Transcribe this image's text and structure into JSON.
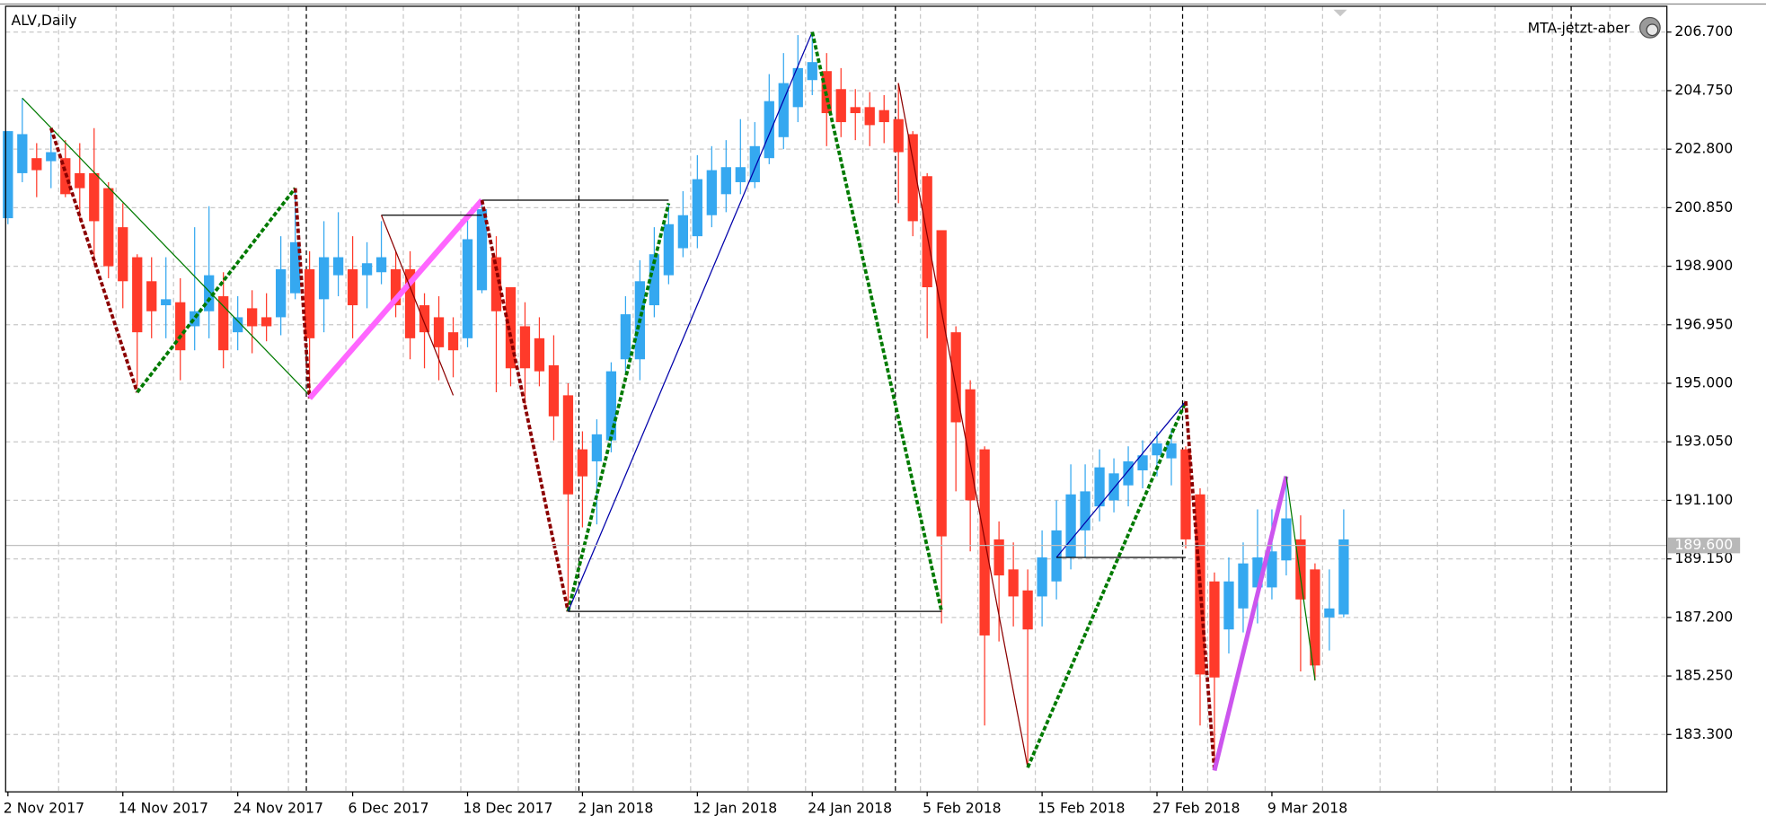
{
  "chart_data": {
    "type": "candlestick",
    "title": "ALV,Daily",
    "indicator_label": "MTA-jetzt-aber",
    "up_color": "#35a8f0",
    "down_color": "#ff3a2a",
    "grid": true,
    "categories": [
      "2 Nov 2017",
      null,
      null,
      null,
      null,
      null,
      null,
      null,
      "14 Nov 2017",
      null,
      null,
      null,
      null,
      null,
      null,
      null,
      "24 Nov 2017",
      null,
      null,
      null,
      null,
      null,
      null,
      null,
      "6 Dec 2017",
      null,
      null,
      null,
      null,
      null,
      null,
      null,
      "18 Dec 2017",
      null,
      null,
      null,
      null,
      null,
      null,
      null,
      "2 Jan 2018",
      null,
      null,
      null,
      null,
      null,
      null,
      null,
      "12 Jan 2018",
      null,
      null,
      null,
      null,
      null,
      null,
      null,
      "24 Jan 2018",
      null,
      null,
      null,
      null,
      null,
      null,
      null,
      "5 Feb 2018",
      null,
      null,
      null,
      null,
      null,
      null,
      null,
      "15 Feb 2018",
      null,
      null,
      null,
      null,
      null,
      null,
      null,
      "27 Feb 2018",
      null,
      null,
      null,
      null,
      null,
      null,
      null,
      "9 Mar 2018",
      null,
      null,
      null,
      null,
      null
    ],
    "open": [
      200.5,
      202.0,
      202.5,
      202.4,
      202.5,
      202.0,
      202.0,
      201.5,
      200.2,
      199.2,
      198.4,
      197.6,
      197.7,
      196.9,
      197.4,
      197.9,
      196.7,
      197.5,
      197.2,
      197.2,
      198.0,
      198.8,
      197.8,
      198.6,
      198.8,
      198.6,
      198.7,
      198.8,
      198.8,
      197.6,
      197.2,
      196.7,
      196.5,
      198.1,
      199.2,
      198.2,
      196.9,
      196.5,
      195.6,
      194.6,
      192.8,
      192.4,
      193.1,
      195.8,
      195.8,
      197.6,
      198.6,
      199.5,
      199.9,
      200.6,
      201.3,
      201.7,
      201.7,
      202.5,
      203.2,
      204.2,
      205.1,
      205.4,
      204.8,
      204.2,
      204.2,
      204.1,
      203.8,
      203.3,
      201.9,
      200.1,
      196.7,
      194.8,
      192.8,
      189.8,
      188.8,
      188.1,
      187.9,
      188.4,
      189.2,
      190.1,
      190.9,
      191.1,
      191.6,
      192.1,
      192.6,
      192.5,
      192.8,
      191.3,
      188.4,
      186.8,
      187.5,
      188.2,
      188.2,
      189.1,
      189.8,
      188.8,
      187.2,
      187.3
    ],
    "high": [
      203.4,
      204.5,
      203.0,
      203.5,
      203.1,
      203.0,
      203.5,
      201.7,
      201.0,
      199.3,
      199.2,
      199.2,
      198.5,
      200.2,
      200.9,
      198.7,
      197.9,
      198.1,
      198.0,
      199.9,
      201.5,
      199.4,
      200.4,
      200.7,
      199.9,
      199.7,
      200.4,
      199.4,
      199.4,
      198.0,
      197.9,
      197.2,
      200.6,
      201.1,
      199.9,
      198.2,
      197.7,
      197.2,
      196.6,
      195.0,
      193.4,
      193.8,
      195.7,
      197.9,
      199.1,
      200.2,
      201.0,
      201.4,
      202.6,
      202.9,
      203.1,
      203.8,
      203.7,
      205.3,
      206.0,
      206.6,
      206.7,
      206.0,
      205.5,
      204.8,
      204.7,
      204.6,
      205.0,
      203.4,
      202.0,
      200.1,
      196.9,
      195.1,
      192.9,
      190.4,
      189.7,
      188.8,
      190.1,
      191.1,
      192.3,
      192.3,
      192.8,
      192.5,
      192.9,
      193.1,
      193.4,
      193.5,
      192.9,
      191.5,
      188.7,
      189.2,
      189.7,
      190.8,
      190.8,
      191.9,
      190.6,
      189.0,
      188.8,
      190.8
    ],
    "low": [
      200.3,
      201.7,
      201.2,
      201.5,
      201.2,
      200.4,
      199.0,
      198.5,
      197.5,
      194.9,
      196.5,
      196.5,
      195.1,
      196.1,
      196.5,
      195.5,
      196.1,
      196.0,
      196.4,
      196.6,
      197.8,
      194.5,
      196.7,
      197.9,
      196.5,
      197.5,
      198.3,
      197.2,
      195.8,
      195.5,
      195.1,
      195.2,
      196.2,
      198.0,
      194.7,
      194.9,
      194.3,
      194.9,
      193.1,
      187.4,
      190.2,
      190.3,
      192.7,
      195.3,
      195.1,
      197.2,
      198.3,
      199.2,
      199.5,
      200.2,
      200.7,
      201.3,
      201.5,
      202.3,
      202.8,
      203.7,
      204.6,
      202.9,
      203.2,
      203.1,
      202.9,
      203.0,
      201.0,
      199.9,
      196.5,
      187.0,
      191.4,
      189.4,
      183.6,
      186.4,
      186.9,
      182.2,
      186.9,
      187.8,
      188.8,
      189.2,
      190.4,
      190.7,
      190.9,
      191.5,
      191.9,
      191.6,
      189.5,
      183.6,
      182.1,
      186.0,
      186.7,
      187.0,
      187.8,
      188.6,
      185.4,
      185.1,
      186.1,
      187.2
    ],
    "close": [
      203.4,
      203.3,
      202.1,
      202.7,
      201.3,
      201.5,
      200.4,
      198.9,
      198.4,
      196.7,
      197.4,
      197.8,
      196.1,
      197.4,
      198.6,
      196.1,
      197.2,
      196.9,
      196.9,
      198.8,
      199.7,
      196.5,
      199.2,
      199.2,
      197.6,
      199.0,
      199.2,
      197.6,
      196.5,
      196.7,
      196.2,
      196.1,
      199.8,
      200.8,
      197.4,
      195.5,
      195.5,
      195.4,
      193.9,
      191.3,
      191.9,
      193.3,
      195.4,
      197.3,
      198.4,
      199.3,
      200.3,
      200.6,
      201.8,
      202.1,
      202.2,
      202.2,
      202.9,
      204.4,
      205.0,
      205.5,
      205.7,
      204.0,
      203.7,
      204.0,
      203.6,
      203.7,
      202.7,
      200.4,
      198.2,
      189.9,
      193.7,
      191.1,
      186.6,
      188.6,
      187.9,
      186.8,
      189.2,
      190.1,
      191.3,
      191.4,
      192.2,
      192.0,
      192.4,
      192.6,
      193.0,
      193.0,
      189.8,
      185.3,
      185.2,
      188.4,
      189.0,
      189.2,
      189.4,
      190.5,
      187.8,
      185.6,
      187.5,
      189.8
    ],
    "xlim": [
      -0.16,
      115.5
    ],
    "ylim": [
      181.39,
      207.56
    ],
    "yticks": [
      {
        "value": 206.7,
        "label": "206.700"
      },
      {
        "value": 204.75,
        "label": "204.750"
      },
      {
        "value": 202.8,
        "label": "202.800"
      },
      {
        "value": 200.85,
        "label": "200.850"
      },
      {
        "value": 198.9,
        "label": "198.900"
      },
      {
        "value": 196.95,
        "label": "196.950"
      },
      {
        "value": 195.0,
        "label": "195.000"
      },
      {
        "value": 193.05,
        "label": "193.050"
      },
      {
        "value": 191.1,
        "label": "191.100"
      },
      {
        "value": 189.15,
        "label": "189.150"
      },
      {
        "value": 187.2,
        "label": "187.200"
      },
      {
        "value": 185.25,
        "label": "185.250"
      },
      {
        "value": 183.3,
        "label": "183.300"
      }
    ],
    "current_price": {
      "value": 189.6,
      "label": "189.600"
    },
    "overlays": [
      {
        "color": "#007a00",
        "dash": false,
        "width": 1,
        "x": [
          1,
          21
        ],
        "values": [
          204.5,
          194.6
        ]
      },
      {
        "color": "#8b0000",
        "dash": true,
        "width": 3,
        "x": [
          3,
          9
        ],
        "values": [
          203.5,
          194.7
        ]
      },
      {
        "color": "#007a00",
        "dash": true,
        "width": 3,
        "x": [
          9,
          20
        ],
        "values": [
          194.7,
          201.5
        ]
      },
      {
        "color": "#8b0000",
        "dash": true,
        "width": 3,
        "x": [
          20,
          21
        ],
        "values": [
          201.5,
          194.5
        ]
      },
      {
        "color": "#ff66ff",
        "dash": false,
        "width": 5,
        "x": [
          21,
          33
        ],
        "values": [
          194.5,
          201.1
        ]
      },
      {
        "color": "#000000",
        "dash": false,
        "width": 1,
        "x": [
          26,
          33
        ],
        "values": [
          200.6,
          200.6
        ]
      },
      {
        "color": "#8b0000",
        "dash": false,
        "width": 1,
        "x": [
          26,
          31
        ],
        "values": [
          200.6,
          194.6
        ]
      },
      {
        "color": "#000000",
        "dash": false,
        "width": 1,
        "x": [
          33,
          46
        ],
        "values": [
          201.1,
          201.1
        ]
      },
      {
        "color": "#8b0000",
        "dash": true,
        "width": 3,
        "x": [
          33,
          39
        ],
        "values": [
          201.1,
          187.4
        ]
      },
      {
        "color": "#007a00",
        "dash": true,
        "width": 3,
        "x": [
          39,
          46
        ],
        "values": [
          187.4,
          201.0
        ]
      },
      {
        "color": "#0000aa",
        "dash": false,
        "width": 1,
        "x": [
          39,
          56
        ],
        "values": [
          187.4,
          206.7
        ]
      },
      {
        "color": "#000000",
        "dash": false,
        "width": 1,
        "x": [
          39,
          65
        ],
        "values": [
          187.4,
          187.4
        ]
      },
      {
        "color": "#007a00",
        "dash": true,
        "width": 3,
        "x": [
          56,
          65
        ],
        "values": [
          206.7,
          187.4
        ]
      },
      {
        "color": "#8b0000",
        "dash": false,
        "width": 1,
        "x": [
          62,
          71
        ],
        "values": [
          205.0,
          182.2
        ]
      },
      {
        "color": "#007a00",
        "dash": true,
        "width": 3,
        "x": [
          71,
          82
        ],
        "values": [
          182.2,
          194.4
        ]
      },
      {
        "color": "#0000aa",
        "dash": false,
        "width": 1,
        "x": [
          73,
          82
        ],
        "values": [
          189.2,
          194.4
        ]
      },
      {
        "color": "#000000",
        "dash": false,
        "width": 1,
        "x": [
          73,
          82
        ],
        "values": [
          189.2,
          189.2
        ]
      },
      {
        "color": "#8b0000",
        "dash": true,
        "width": 3,
        "x": [
          82,
          84
        ],
        "values": [
          194.4,
          182.1
        ]
      },
      {
        "color": "#cc55ee",
        "dash": false,
        "width": 4,
        "x": [
          84,
          89
        ],
        "values": [
          182.1,
          191.9
        ]
      },
      {
        "color": "#007a00",
        "dash": false,
        "width": 1,
        "x": [
          89,
          91
        ],
        "values": [
          191.9,
          185.1
        ]
      }
    ]
  }
}
